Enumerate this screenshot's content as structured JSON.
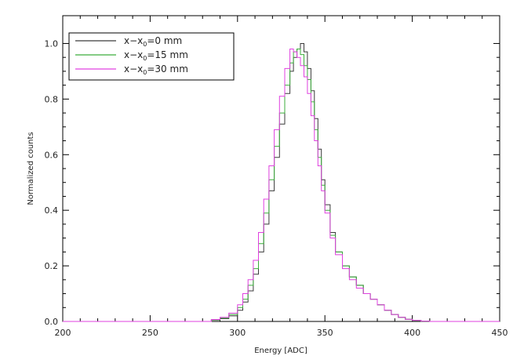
{
  "chart_data": {
    "type": "line",
    "title": "",
    "xlabel": "Energy [ADC]",
    "ylabel": "Normalized counts",
    "xlim": [
      200,
      450
    ],
    "ylim": [
      0.0,
      1.1
    ],
    "x_ticks": [
      "200",
      "250",
      "300",
      "350",
      "400",
      "450"
    ],
    "y_ticks": [
      "0.0",
      "0.2",
      "0.4",
      "0.6",
      "0.8",
      "1.0"
    ],
    "grid": false,
    "legend_position": "top-left",
    "style": "step histogram",
    "series": [
      {
        "name": "x−x₀=0  mm",
        "legend_prefix": "x−x",
        "legend_sub": "0",
        "legend_suffix": "=0  mm",
        "color": "#3a3a3a",
        "x": [
          280,
          285,
          290,
          295,
          300,
          303,
          306,
          309,
          312,
          315,
          318,
          321,
          324,
          327,
          330,
          332,
          334,
          336,
          338,
          340,
          342,
          344,
          346,
          348,
          350,
          353,
          356,
          360,
          364,
          368,
          372,
          376,
          380,
          384,
          388,
          392,
          396,
          400,
          405,
          410
        ],
        "y": [
          0.0,
          0.005,
          0.01,
          0.02,
          0.04,
          0.07,
          0.11,
          0.17,
          0.25,
          0.35,
          0.47,
          0.59,
          0.71,
          0.82,
          0.9,
          0.95,
          0.98,
          1.0,
          0.97,
          0.91,
          0.83,
          0.73,
          0.62,
          0.51,
          0.42,
          0.32,
          0.25,
          0.2,
          0.16,
          0.13,
          0.1,
          0.08,
          0.06,
          0.04,
          0.025,
          0.015,
          0.008,
          0.004,
          0.001,
          0.0
        ]
      },
      {
        "name": "x−x₀=15  mm",
        "legend_prefix": "x−x",
        "legend_sub": "0",
        "legend_suffix": "=15  mm",
        "color": "#3cae3c",
        "x": [
          280,
          285,
          290,
          295,
          300,
          303,
          306,
          309,
          312,
          315,
          318,
          321,
          324,
          327,
          330,
          332,
          334,
          336,
          338,
          340,
          342,
          344,
          346,
          348,
          350,
          353,
          356,
          360,
          364,
          368,
          372,
          376,
          380,
          384,
          388,
          392,
          396,
          400,
          405,
          410
        ],
        "y": [
          0.0,
          0.006,
          0.012,
          0.025,
          0.05,
          0.08,
          0.13,
          0.19,
          0.28,
          0.39,
          0.51,
          0.63,
          0.75,
          0.85,
          0.93,
          0.97,
          0.98,
          0.96,
          0.92,
          0.87,
          0.79,
          0.69,
          0.59,
          0.49,
          0.4,
          0.31,
          0.25,
          0.2,
          0.16,
          0.13,
          0.1,
          0.08,
          0.06,
          0.04,
          0.025,
          0.015,
          0.008,
          0.004,
          0.001,
          0.0
        ]
      },
      {
        "name": "x−x₀=30  mm",
        "legend_prefix": "x−x",
        "legend_sub": "0",
        "legend_suffix": "=30  mm",
        "color": "#e040e0",
        "x": [
          280,
          285,
          290,
          295,
          300,
          303,
          306,
          309,
          312,
          315,
          318,
          321,
          324,
          327,
          330,
          332,
          334,
          336,
          338,
          340,
          342,
          344,
          346,
          348,
          350,
          353,
          356,
          360,
          364,
          368,
          372,
          376,
          380,
          384,
          388,
          392,
          396,
          400,
          405,
          410
        ],
        "y": [
          0.0,
          0.007,
          0.015,
          0.03,
          0.06,
          0.1,
          0.15,
          0.22,
          0.32,
          0.44,
          0.56,
          0.69,
          0.81,
          0.91,
          0.98,
          0.97,
          0.95,
          0.92,
          0.88,
          0.82,
          0.74,
          0.65,
          0.56,
          0.47,
          0.39,
          0.3,
          0.24,
          0.19,
          0.15,
          0.12,
          0.1,
          0.08,
          0.06,
          0.04,
          0.025,
          0.015,
          0.008,
          0.004,
          0.001,
          0.0
        ]
      }
    ]
  }
}
